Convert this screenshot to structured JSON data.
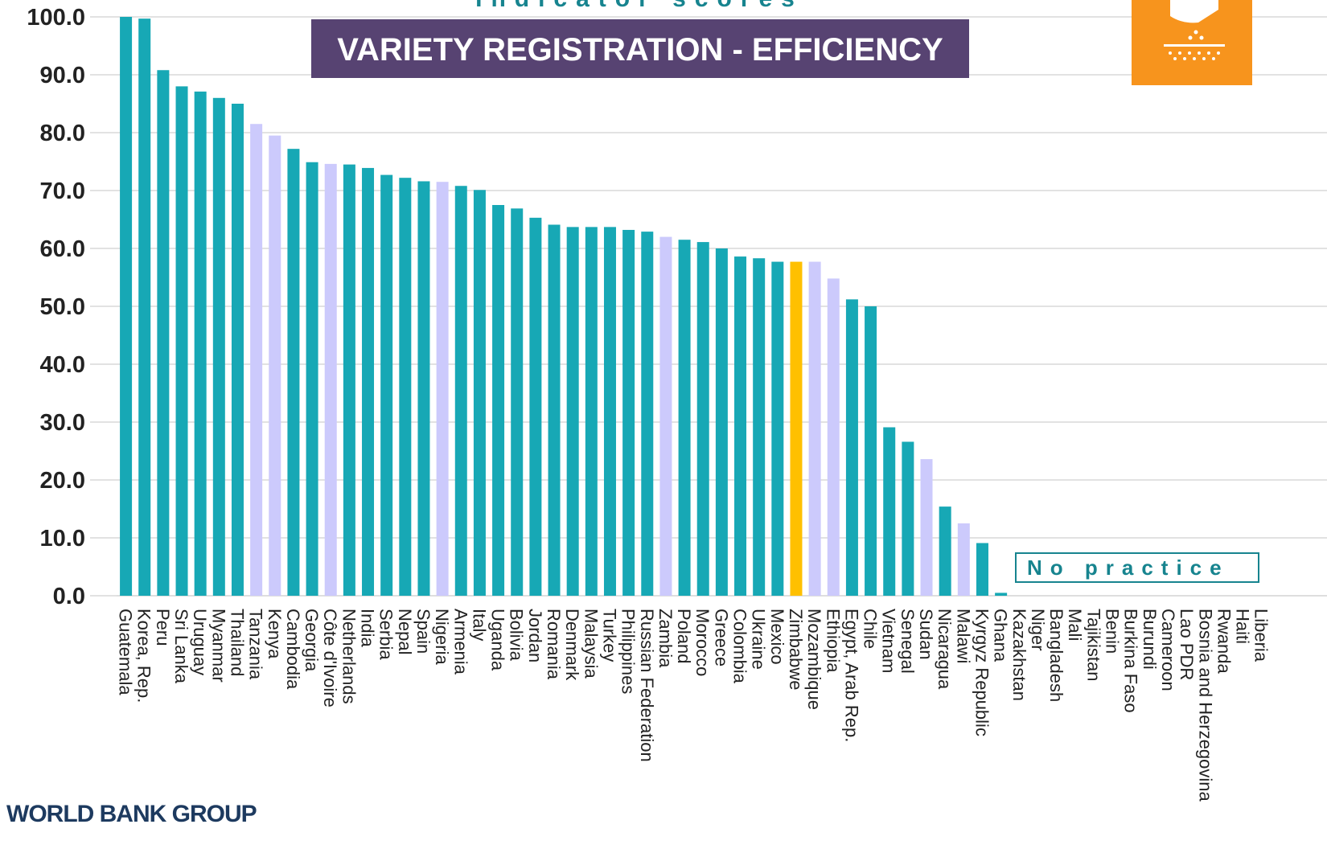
{
  "chart_data": {
    "type": "bar",
    "supertitle": "Indicator scores",
    "title": "VARIETY REGISTRATION - EFFICIENCY",
    "annotation": "No practice",
    "footer": "WORLD BANK GROUP",
    "categories": [
      "Guatemala",
      "Korea, Rep.",
      "Peru",
      "Sri Lanka",
      "Uruguay",
      "Myanmar",
      "Thailand",
      "Tanzania",
      "Kenya",
      "Cambodia",
      "Georgia",
      "Côte d'Ivoire",
      "Netherlands",
      "India",
      "Serbia",
      "Nepal",
      "Spain",
      "Nigeria",
      "Armenia",
      "Italy",
      "Uganda",
      "Bolivia",
      "Jordan",
      "Romania",
      "Denmark",
      "Malaysia",
      "Turkey",
      "Philippines",
      "Russian Federation",
      "Zambia",
      "Poland",
      "Morocco",
      "Greece",
      "Colombia",
      "Ukraine",
      "Mexico",
      "Zimbabwe",
      "Mozambique",
      "Ethiopia",
      "Egypt, Arab Rep.",
      "Chile",
      "Vietnam",
      "Senegal",
      "Sudan",
      "Nicaragua",
      "Malawi",
      "Kyrgyz Republic",
      "Ghana",
      "Kazakhstan",
      "Niger",
      "Bangladesh",
      "Mali",
      "Tajikistan",
      "Benin",
      "Burkina Faso",
      "Burundi",
      "Cameroon",
      "Lao PDR",
      "Bosnia and Herzegovina",
      "Rwanda",
      "Haiti",
      "Liberia"
    ],
    "values": [
      100,
      99.7,
      90.8,
      88,
      87.1,
      86,
      85,
      81.5,
      79.5,
      77.2,
      74.9,
      74.6,
      74.5,
      73.9,
      72.7,
      72.2,
      71.6,
      71.5,
      70.8,
      70.1,
      67.5,
      66.9,
      65.3,
      64.1,
      63.7,
      63.7,
      63.7,
      63.2,
      62.9,
      62,
      61.5,
      61.1,
      60,
      58.6,
      58.3,
      57.7,
      57.7,
      57.7,
      54.8,
      51.2,
      50,
      29.1,
      26.6,
      23.6,
      15.4,
      12.5,
      9.1,
      0.5,
      null,
      null,
      null,
      null,
      null,
      null,
      null,
      null,
      null,
      null,
      null,
      null,
      null,
      null
    ],
    "colors": [
      "#17a8b5",
      "#17a8b5",
      "#17a8b5",
      "#17a8b5",
      "#17a8b5",
      "#17a8b5",
      "#17a8b5",
      "#cccafc",
      "#cccafc",
      "#17a8b5",
      "#17a8b5",
      "#cccafc",
      "#17a8b5",
      "#17a8b5",
      "#17a8b5",
      "#17a8b5",
      "#17a8b5",
      "#cccafc",
      "#17a8b5",
      "#17a8b5",
      "#17a8b5",
      "#17a8b5",
      "#17a8b5",
      "#17a8b5",
      "#17a8b5",
      "#17a8b5",
      "#17a8b5",
      "#17a8b5",
      "#17a8b5",
      "#cccafc",
      "#17a8b5",
      "#17a8b5",
      "#17a8b5",
      "#17a8b5",
      "#17a8b5",
      "#17a8b5",
      "#ffc000",
      "#cccafc",
      "#cccafc",
      "#17a8b5",
      "#17a8b5",
      "#17a8b5",
      "#17a8b5",
      "#cccafc",
      "#17a8b5",
      "#cccafc",
      "#17a8b5",
      "#17a8b5",
      "#17a8b5",
      "#17a8b5",
      "#17a8b5",
      "#17a8b5",
      "#17a8b5",
      "#17a8b5",
      "#17a8b5",
      "#17a8b5",
      "#17a8b5",
      "#17a8b5",
      "#17a8b5",
      "#17a8b5",
      "#17a8b5",
      "#17a8b5"
    ],
    "ylim": [
      0,
      100
    ],
    "yticks": [
      {
        "value": 0,
        "label": "0.0"
      },
      {
        "value": 10,
        "label": "10.0"
      },
      {
        "value": 20,
        "label": "20.0"
      },
      {
        "value": 30,
        "label": "30.0"
      },
      {
        "value": 40,
        "label": "40.0"
      },
      {
        "value": 50,
        "label": "50.0"
      },
      {
        "value": 60,
        "label": "60.0"
      },
      {
        "value": 70,
        "label": "70.0"
      },
      {
        "value": 80,
        "label": "80.0"
      },
      {
        "value": 90,
        "label": "90.0"
      },
      {
        "value": 100,
        "label": "100.0"
      }
    ],
    "grid": true
  }
}
